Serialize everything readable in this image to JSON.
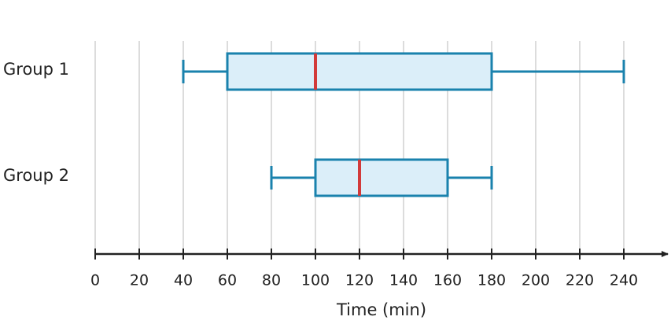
{
  "chart_data": {
    "type": "box",
    "x_label": "Time (min)",
    "categories": [
      "Group 1",
      "Group 2"
    ],
    "boxes": [
      {
        "min": 40,
        "q1": 60,
        "median": 100,
        "q3": 180,
        "max": 240
      },
      {
        "min": 80,
        "q1": 100,
        "median": 120,
        "q3": 160,
        "max": 180
      }
    ],
    "box_color": "#dbeef9",
    "line_color": "#1a82ad",
    "median_color": "#d23a3a",
    "xlim": [
      0,
      260
    ],
    "xticks": [
      0,
      20,
      40,
      60,
      80,
      100,
      120,
      140,
      160,
      180,
      200,
      220,
      240
    ],
    "grid": true
  }
}
